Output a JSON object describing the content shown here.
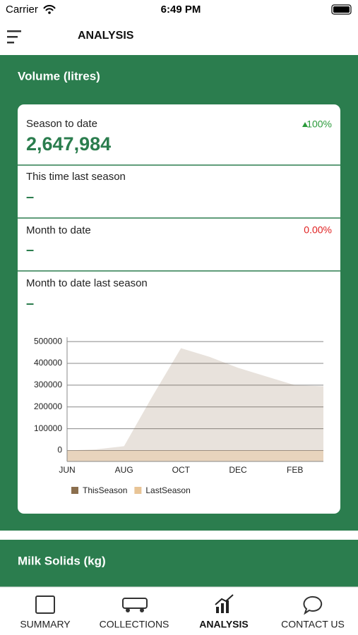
{
  "status_bar": {
    "carrier": "Carrier",
    "time": "6:49 PM"
  },
  "header": {
    "title": "ANALYSIS"
  },
  "volume": {
    "title": "Volume (litres)",
    "stats": [
      {
        "label": "Season to date",
        "value": "2,647,984",
        "change": "100%"
      },
      {
        "label": "This time last season",
        "value": "–"
      },
      {
        "label": "Month to date",
        "value": "–",
        "change": "0.00%"
      },
      {
        "label": "Month to date last season",
        "value": "–"
      }
    ]
  },
  "chart_data": {
    "type": "area",
    "categories": [
      "JUN",
      null,
      "AUG",
      null,
      "OCT",
      null,
      "DEC",
      null,
      "FEB",
      null
    ],
    "series": [
      {
        "name": "ThisSeason",
        "color": "#8b6f4e",
        "values": [
          0,
          5000,
          20000,
          250000,
          470000,
          430000,
          380000,
          340000,
          300000,
          295000
        ]
      },
      {
        "name": "LastSeason",
        "color": "#e8c496",
        "values": [
          0,
          0,
          0,
          0,
          0,
          0,
          0,
          0,
          0,
          0
        ]
      }
    ],
    "ylim": [
      -50000,
      520000
    ],
    "yticks": [
      0,
      100000,
      200000,
      300000,
      400000,
      500000
    ],
    "grid": true
  },
  "milk_solids": {
    "title": "Milk Solids (kg)"
  },
  "tabs": [
    "SUMMARY",
    "COLLECTIONS",
    "ANALYSIS",
    "CONTACT US"
  ]
}
